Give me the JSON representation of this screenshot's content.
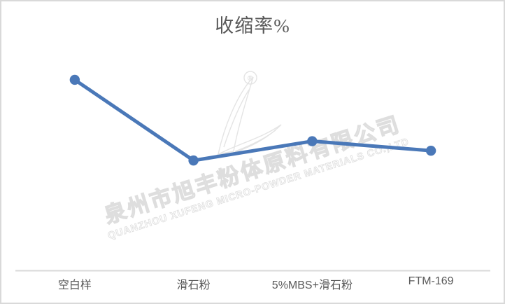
{
  "title": "收缩率%",
  "chart_data": {
    "type": "line",
    "title": "收缩率%",
    "categories": [
      "空白样",
      "滑石粉",
      "5%MBS+滑石粉",
      "FTM-169"
    ],
    "series": [
      {
        "name": "收缩率%",
        "values": [
          84,
          48.5,
          57,
          52.8
        ]
      }
    ],
    "xlabel": "",
    "ylabel": "",
    "ylim": [
      0,
      100
    ],
    "y_axis_visible": false,
    "grid": false,
    "legend_position": "none",
    "line_color": "#4a78b8",
    "marker": "circle",
    "axis_line_color": "#d9d9d9"
  },
  "watermark": {
    "company_cn": "泉州市旭丰粉体原料有限公司",
    "company_en": "QUANZHOU XUFENG MICRO-POWDER MATERIALS CO.,LTD",
    "registered_mark": "®"
  },
  "colors": {
    "line": "#4a78b8",
    "axis_line": "#d9d9d9",
    "text": "#595959",
    "frame_border": "#d9d9d9",
    "watermark_outline": "#e0e0e0"
  }
}
